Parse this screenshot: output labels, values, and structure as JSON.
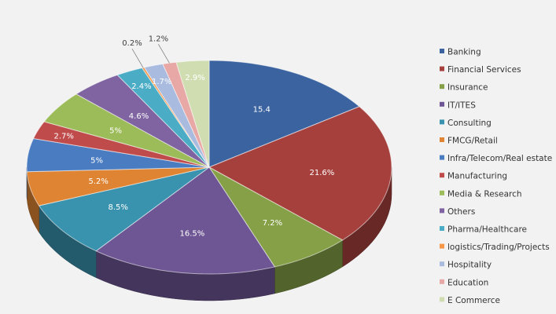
{
  "chart_data": {
    "type": "pie",
    "variant": "3d",
    "legend_position": "right",
    "slices": [
      {
        "name": "Banking",
        "value": 15.4,
        "label": "15.4",
        "color": "#3B63A0"
      },
      {
        "name": "Financial Services",
        "value": 21.6,
        "label": "21.6%",
        "color": "#A6403D"
      },
      {
        "name": "Insurance",
        "value": 7.2,
        "label": "7.2%",
        "color": "#85A046"
      },
      {
        "name": "IT/ITES",
        "value": 16.5,
        "label": "16.5%",
        "color": "#6E5594"
      },
      {
        "name": "Consulting",
        "value": 8.5,
        "label": "8.5%",
        "color": "#3A93AE"
      },
      {
        "name": "FMCG/Retail",
        "value": 5.2,
        "label": "5.2%",
        "color": "#DE8432"
      },
      {
        "name": "Infra/Telecom/Real estate",
        "value": 5.0,
        "label": "5%",
        "color": "#4A7CC1"
      },
      {
        "name": "Manufacturing",
        "value": 2.7,
        "label": "2.7%",
        "color": "#C04B4B"
      },
      {
        "name": "Media & Research",
        "value": 5.0,
        "label": "5%",
        "color": "#9CBB59"
      },
      {
        "name": "Others",
        "value": 4.6,
        "label": "4.6%",
        "color": "#8064A2"
      },
      {
        "name": "Pharma/Healthcare",
        "value": 2.4,
        "label": "2.4%",
        "color": "#4BACC6"
      },
      {
        "name": "logistics/Trading/Projects",
        "value": 0.2,
        "label": "0.2%",
        "color": "#F79646"
      },
      {
        "name": "Hospitality",
        "value": 1.7,
        "label": "1.7%",
        "color": "#A9BCE0"
      },
      {
        "name": "Education",
        "value": 1.2,
        "label": "1.2%",
        "color": "#E7A8A6"
      },
      {
        "name": "E Commerce",
        "value": 2.9,
        "label": "2.9%",
        "color": "#D0DDB1"
      }
    ]
  }
}
